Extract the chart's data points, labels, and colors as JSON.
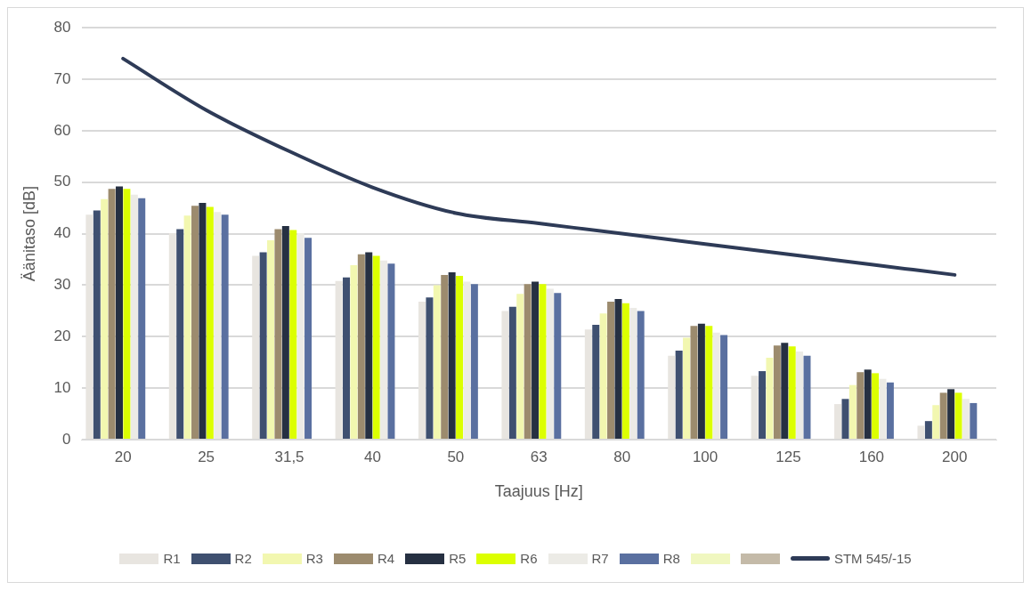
{
  "chart_data": {
    "type": "bar",
    "xlabel": "Taajuus [Hz]",
    "ylabel": "Äänitaso [dB]",
    "categories": [
      "20",
      "25",
      "31,5",
      "40",
      "50",
      "63",
      "80",
      "100",
      "125",
      "160",
      "200"
    ],
    "ylim": [
      0,
      80
    ],
    "yticks": [
      0,
      10,
      20,
      30,
      40,
      50,
      60,
      70,
      80
    ],
    "grid": "y",
    "legend": "bottom",
    "series": [
      {
        "name": "R1",
        "color": "#e8e5e0",
        "values": [
          43.7,
          40.1,
          35.7,
          30.8,
          26.8,
          25.0,
          21.4,
          16.3,
          12.4,
          6.9,
          2.7
        ]
      },
      {
        "name": "R2",
        "color": "#3f5070",
        "values": [
          44.5,
          40.9,
          36.4,
          31.5,
          27.6,
          25.8,
          22.3,
          17.3,
          13.3,
          7.9,
          3.6
        ]
      },
      {
        "name": "R3",
        "color": "#f2f7b0",
        "values": [
          46.7,
          43.5,
          38.7,
          33.9,
          30.0,
          28.3,
          24.5,
          19.8,
          15.9,
          10.6,
          6.7
        ]
      },
      {
        "name": "R4",
        "color": "#9c8b6e",
        "values": [
          48.7,
          45.4,
          40.9,
          36.0,
          32.0,
          30.2,
          26.8,
          22.1,
          18.3,
          13.1,
          9.1
        ]
      },
      {
        "name": "R5",
        "color": "#263042",
        "values": [
          49.2,
          46.0,
          41.5,
          36.4,
          32.5,
          30.7,
          27.3,
          22.5,
          18.8,
          13.6,
          9.8
        ]
      },
      {
        "name": "R6",
        "color": "#dcff00",
        "values": [
          48.7,
          45.2,
          40.7,
          35.7,
          31.8,
          30.2,
          26.5,
          22.1,
          18.1,
          12.9,
          9.1
        ]
      },
      {
        "name": "R7",
        "color": "#ecebe6",
        "values": [
          47.6,
          44.2,
          40.1,
          34.8,
          30.7,
          29.3,
          25.6,
          20.8,
          17.1,
          11.8,
          7.9
        ]
      },
      {
        "name": "R8",
        "color": "#5a70a0",
        "values": [
          46.9,
          43.7,
          39.2,
          34.2,
          30.2,
          28.5,
          25.0,
          20.3,
          16.3,
          11.1,
          7.1
        ]
      },
      {
        "color": "#f0f7c0",
        "values": [
          null,
          null,
          null,
          null,
          null,
          null,
          null,
          null,
          null,
          null,
          null
        ]
      },
      {
        "color": "#c4baa8",
        "values": [
          null,
          null,
          null,
          null,
          null,
          null,
          null,
          null,
          null,
          null,
          null
        ]
      },
      {
        "name": "STM 545/-15",
        "type": "line",
        "color": "#2e3b57",
        "values": [
          74,
          64,
          56,
          49,
          44,
          42,
          40,
          38,
          36,
          34,
          32
        ]
      }
    ]
  }
}
